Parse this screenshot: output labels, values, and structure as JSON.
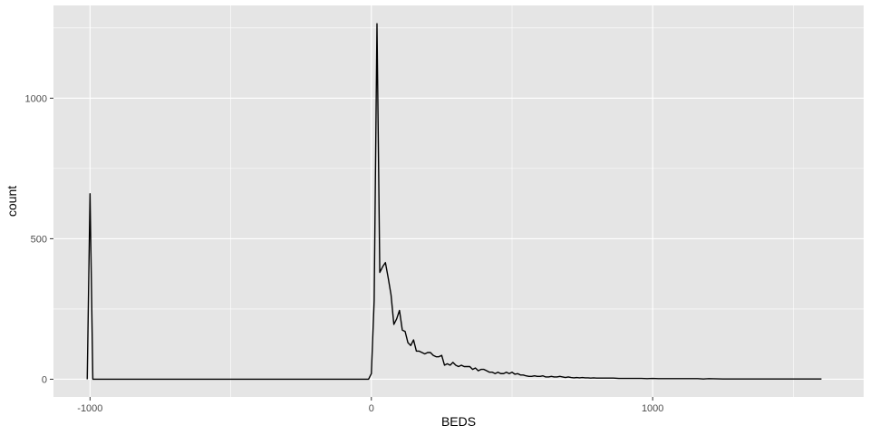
{
  "chart_data": {
    "type": "line",
    "xlabel": "BEDS",
    "ylabel": "count",
    "xlim": [
      -1130,
      1750
    ],
    "ylim": [
      -63,
      1330
    ],
    "x_ticks": [
      -1000,
      0,
      1000
    ],
    "x_tick_labels": [
      "-1000",
      "0",
      "1000"
    ],
    "x_minor_ticks": [
      -500,
      500,
      1500
    ],
    "y_ticks": [
      0,
      500,
      1000
    ],
    "y_tick_labels": [
      "0",
      "500",
      "1000"
    ],
    "y_minor_ticks": [
      250,
      750,
      1250
    ],
    "grid": true,
    "colors": {
      "panel": "#e5e5e5",
      "grid": "#ffffff",
      "line": "#000000",
      "tick_text": "#4d4d4d",
      "tick_mark": "#333333"
    },
    "series": [
      {
        "x": [
          -1010,
          -1000,
          -990,
          -980,
          -10,
          0,
          10,
          20,
          30,
          40,
          50,
          60,
          70,
          80,
          90,
          100,
          110,
          120,
          130,
          140,
          150,
          160,
          170,
          180,
          190,
          200,
          210,
          220,
          230,
          240,
          250,
          260,
          270,
          280,
          290,
          300,
          310,
          320,
          330,
          340,
          350,
          360,
          370,
          380,
          390,
          400,
          410,
          420,
          430,
          440,
          450,
          460,
          470,
          480,
          490,
          500,
          510,
          520,
          530,
          540,
          550,
          560,
          570,
          580,
          590,
          600,
          610,
          620,
          630,
          640,
          650,
          660,
          670,
          680,
          690,
          700,
          710,
          720,
          730,
          740,
          750,
          760,
          770,
          780,
          790,
          800,
          820,
          840,
          860,
          880,
          900,
          920,
          940,
          960,
          980,
          1000,
          1020,
          1040,
          1060,
          1080,
          1100,
          1120,
          1140,
          1160,
          1180,
          1200,
          1250,
          1300,
          1350,
          1400,
          1450,
          1500,
          1550,
          1600
        ],
        "y": [
          0,
          660,
          0,
          0,
          0,
          20,
          280,
          1265,
          380,
          400,
          415,
          360,
          300,
          195,
          215,
          245,
          175,
          170,
          130,
          120,
          140,
          100,
          100,
          95,
          90,
          95,
          95,
          85,
          80,
          80,
          85,
          50,
          55,
          50,
          60,
          50,
          45,
          50,
          45,
          45,
          45,
          35,
          40,
          30,
          35,
          35,
          30,
          25,
          25,
          20,
          25,
          20,
          20,
          25,
          20,
          25,
          18,
          20,
          15,
          15,
          12,
          10,
          10,
          12,
          10,
          10,
          12,
          8,
          8,
          10,
          8,
          8,
          10,
          8,
          6,
          8,
          6,
          5,
          6,
          5,
          6,
          5,
          5,
          4,
          5,
          4,
          4,
          4,
          4,
          3,
          3,
          3,
          3,
          3,
          2,
          3,
          2,
          2,
          2,
          2,
          2,
          2,
          2,
          2,
          1,
          2,
          1,
          1,
          1,
          1,
          1,
          1,
          1,
          1
        ]
      }
    ]
  }
}
